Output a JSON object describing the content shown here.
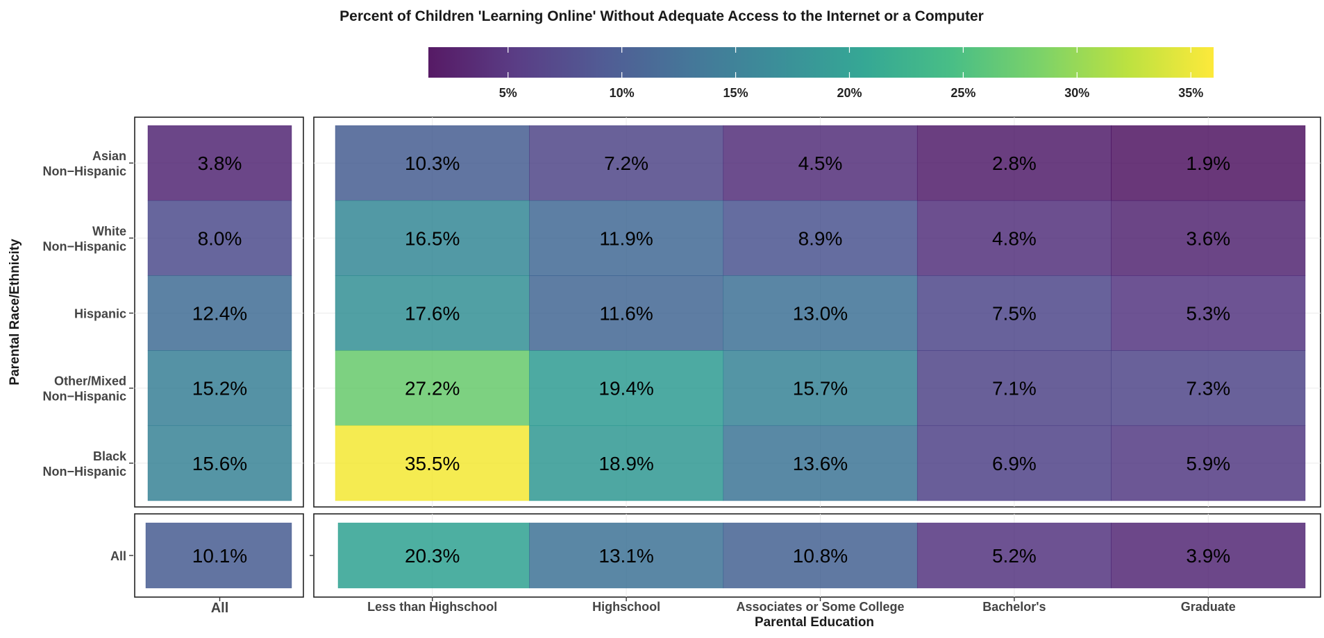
{
  "chart_data": {
    "type": "heatmap",
    "title": "Percent of Children 'Learning Online' Without Adequate Access to the Internet or a Computer",
    "xlabel": "Parental Education",
    "ylabel": "Parental Race/Ethnicity",
    "x_categories": [
      "Less than Highschool",
      "Highschool",
      "Associates or Some College",
      "Bachelor's",
      "Graduate"
    ],
    "y_categories": [
      {
        "line1": "Asian",
        "line2": "Non−Hispanic"
      },
      {
        "line1": "White",
        "line2": "Non−Hispanic"
      },
      {
        "line1": "Hispanic",
        "line2": ""
      },
      {
        "line1": "Other/Mixed",
        "line2": "Non−Hispanic"
      },
      {
        "line1": "Black",
        "line2": "Non−Hispanic"
      }
    ],
    "all_label": "All",
    "unit": "%",
    "values": [
      [
        10.3,
        7.2,
        4.5,
        2.8,
        1.9
      ],
      [
        16.5,
        11.9,
        8.9,
        4.8,
        3.6
      ],
      [
        17.6,
        11.6,
        13.0,
        7.5,
        5.3
      ],
      [
        27.2,
        19.4,
        15.7,
        7.1,
        7.3
      ],
      [
        35.5,
        18.9,
        13.6,
        6.9,
        5.9
      ]
    ],
    "row_all": [
      3.8,
      8.0,
      12.4,
      15.2,
      15.6
    ],
    "col_all": [
      20.3,
      13.1,
      10.8,
      5.2,
      3.9
    ],
    "overall_all": 10.1,
    "colorbar": {
      "range": [
        1.5,
        36
      ],
      "ticks": [
        5,
        10,
        15,
        20,
        25,
        30,
        35
      ],
      "tick_labels": [
        "5%",
        "10%",
        "15%",
        "20%",
        "25%",
        "30%",
        "35%"
      ],
      "palette": [
        "#440154",
        "#482878",
        "#3E4A89",
        "#31688E",
        "#26828E",
        "#1F9E89",
        "#35B779",
        "#6DCD59",
        "#B4DE2C",
        "#FDE725"
      ]
    },
    "cell_alpha": 0.8,
    "grid": true,
    "legend_position": "top"
  }
}
